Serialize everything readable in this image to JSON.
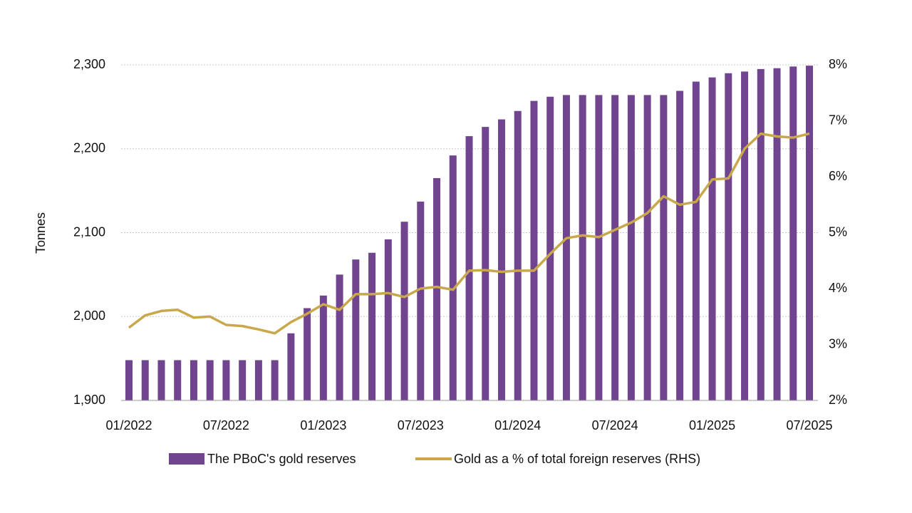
{
  "chart_data": {
    "type": "combo",
    "y_label": "Tonnes",
    "categories": [
      "01/2022",
      null,
      null,
      null,
      null,
      null,
      "07/2022",
      null,
      null,
      null,
      null,
      null,
      "01/2023",
      null,
      null,
      null,
      null,
      null,
      "07/2023",
      null,
      null,
      null,
      null,
      null,
      "01/2024",
      null,
      null,
      null,
      null,
      null,
      "07/2024",
      null,
      null,
      null,
      null,
      null,
      "01/2025",
      null,
      null,
      null,
      null,
      null,
      "07/2025"
    ],
    "series": [
      {
        "name": "The PBoC's gold reserves",
        "type": "bar",
        "color": "#71448f",
        "values": [
          1948,
          1948,
          1948,
          1948,
          1948,
          1948,
          1948,
          1948,
          1948,
          1948,
          1980,
          2010,
          2025,
          2050,
          2068,
          2076,
          2092,
          2113,
          2137,
          2165,
          2192,
          2215,
          2226,
          2235,
          2245,
          2257,
          2262,
          2264,
          2264,
          2264,
          2264,
          2264,
          2264,
          2264,
          2269,
          2280,
          2285,
          2290,
          2292,
          2295,
          2296,
          2298,
          2299
        ]
      },
      {
        "name": "Gold as a % of total foreign reserves (RHS)",
        "type": "line",
        "axis": "y2",
        "color": "#c9a84c",
        "values": [
          3.3,
          3.52,
          3.6,
          3.62,
          3.48,
          3.5,
          3.35,
          3.33,
          3.27,
          3.2,
          3.4,
          3.55,
          3.72,
          3.62,
          3.9,
          3.9,
          3.92,
          3.85,
          4.0,
          4.03,
          3.98,
          4.32,
          4.33,
          4.3,
          4.32,
          4.32,
          4.62,
          4.9,
          4.95,
          4.92,
          5.05,
          5.18,
          5.35,
          5.65,
          5.5,
          5.55,
          5.95,
          5.97,
          6.5,
          6.77,
          6.72,
          6.7,
          6.77
        ]
      }
    ],
    "ylim": [
      1900,
      2300
    ],
    "yticks": [
      {
        "value": 1900,
        "label": "1,900"
      },
      {
        "value": 2000,
        "label": "2,000"
      },
      {
        "value": 2100,
        "label": "2,100"
      },
      {
        "value": 2200,
        "label": "2,200"
      },
      {
        "value": 2300,
        "label": "2,300"
      }
    ],
    "y2lim": [
      2,
      8
    ],
    "y2ticks": [
      {
        "value": 2,
        "label": "2%"
      },
      {
        "value": 3,
        "label": "3%"
      },
      {
        "value": 4,
        "label": "4%"
      },
      {
        "value": 5,
        "label": "5%"
      },
      {
        "value": 6,
        "label": "6%"
      },
      {
        "value": 7,
        "label": "7%"
      },
      {
        "value": 8,
        "label": "8%"
      }
    ],
    "grid": true,
    "legend": "bottom"
  }
}
